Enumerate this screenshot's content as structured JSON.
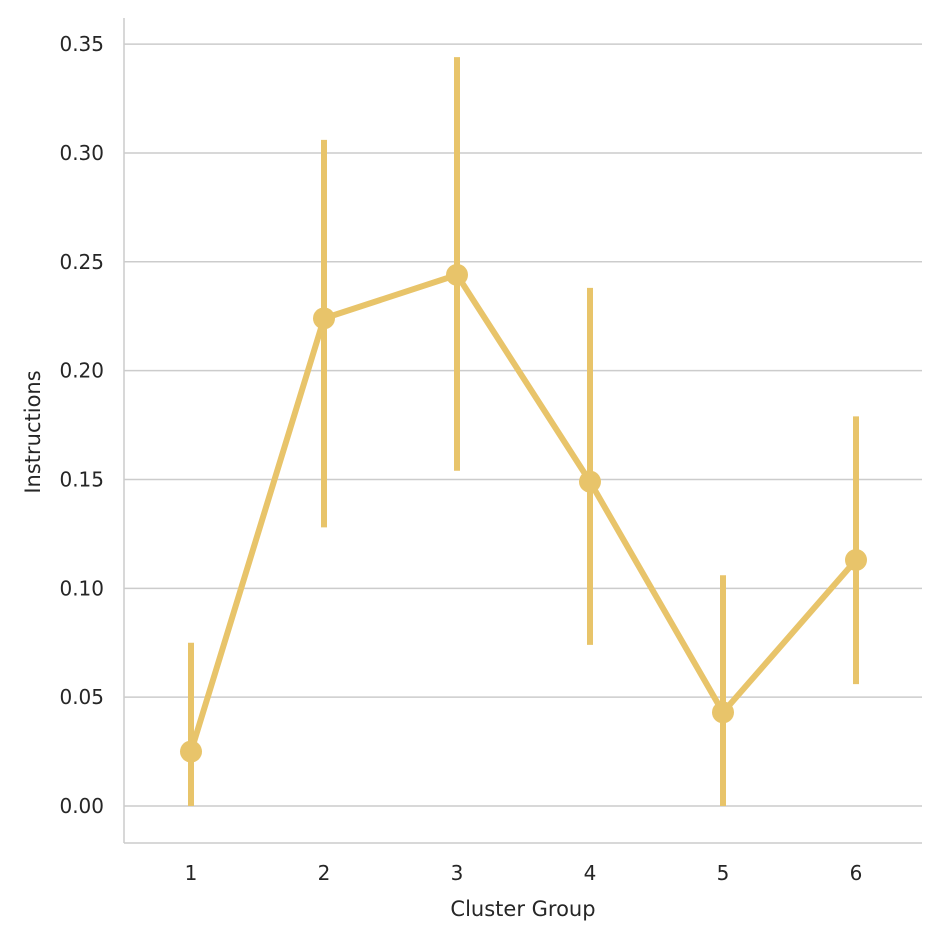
{
  "chart_data": {
    "type": "line",
    "title": "",
    "xlabel": "Cluster Group",
    "ylabel": "Instructions",
    "categories": [
      "1",
      "2",
      "3",
      "4",
      "5",
      "6"
    ],
    "series": [
      {
        "values": [
          0.025,
          0.224,
          0.244,
          0.149,
          0.043,
          0.113
        ],
        "ci_low": [
          0.0,
          0.128,
          0.154,
          0.074,
          0.0,
          0.056
        ],
        "ci_high": [
          0.075,
          0.306,
          0.344,
          0.238,
          0.106,
          0.179
        ],
        "color": "#E8C46A"
      }
    ],
    "ylim": [
      -0.017,
      0.362
    ],
    "yticks": [
      "0.00",
      "0.05",
      "0.10",
      "0.15",
      "0.20",
      "0.25",
      "0.30",
      "0.35"
    ],
    "ytick_values": [
      0.0,
      0.05,
      0.1,
      0.15,
      0.2,
      0.25,
      0.3,
      0.35
    ],
    "grid": "horizontal",
    "legend": "none"
  }
}
